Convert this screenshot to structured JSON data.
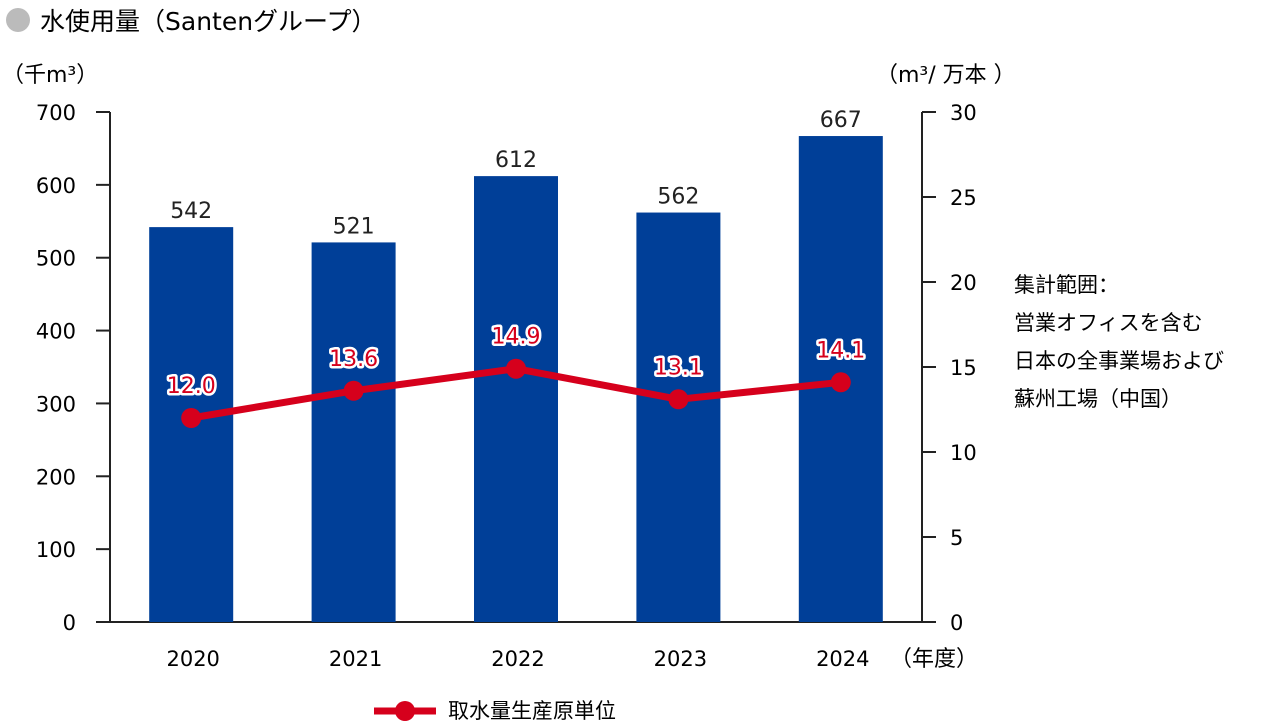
{
  "title": "水使用量（Santenグループ）",
  "colors": {
    "bar": "#003f98",
    "line": "#d6001c",
    "axis": "#222222",
    "title_dot": "#bbbbbb"
  },
  "chart_data": {
    "type": "bar",
    "title": "水使用量（Santenグループ）",
    "categories": [
      "2020",
      "2021",
      "2022",
      "2023",
      "2024"
    ],
    "xlabel": "（年度）",
    "y_left": {
      "label": "（千m³）",
      "ylim": [
        0,
        700
      ],
      "ticks": [
        "0",
        "100",
        "200",
        "300",
        "400",
        "500",
        "600",
        "700"
      ]
    },
    "y_right": {
      "label": "（m³/ 万本 ）",
      "ylim": [
        0,
        30
      ],
      "ticks": [
        "0",
        "5",
        "10",
        "15",
        "20",
        "25",
        "30"
      ]
    },
    "series": [
      {
        "type": "bar",
        "axis": "left",
        "values": [
          542,
          521,
          612,
          562,
          667
        ],
        "labels": [
          "542",
          "521",
          "612",
          "562",
          "667"
        ]
      },
      {
        "type": "line",
        "axis": "right",
        "name": "取水量生産原単位",
        "values": [
          12.0,
          13.6,
          14.9,
          13.1,
          14.1
        ],
        "labels": [
          "12.0",
          "13.6",
          "14.9",
          "13.1",
          "14.1"
        ]
      }
    ],
    "legend": {
      "position": "bottom"
    },
    "grid": false
  },
  "note": [
    "集計範囲：",
    "営業オフィスを含む",
    "日本の全事業場および",
    "蘇州工場（中国）"
  ]
}
